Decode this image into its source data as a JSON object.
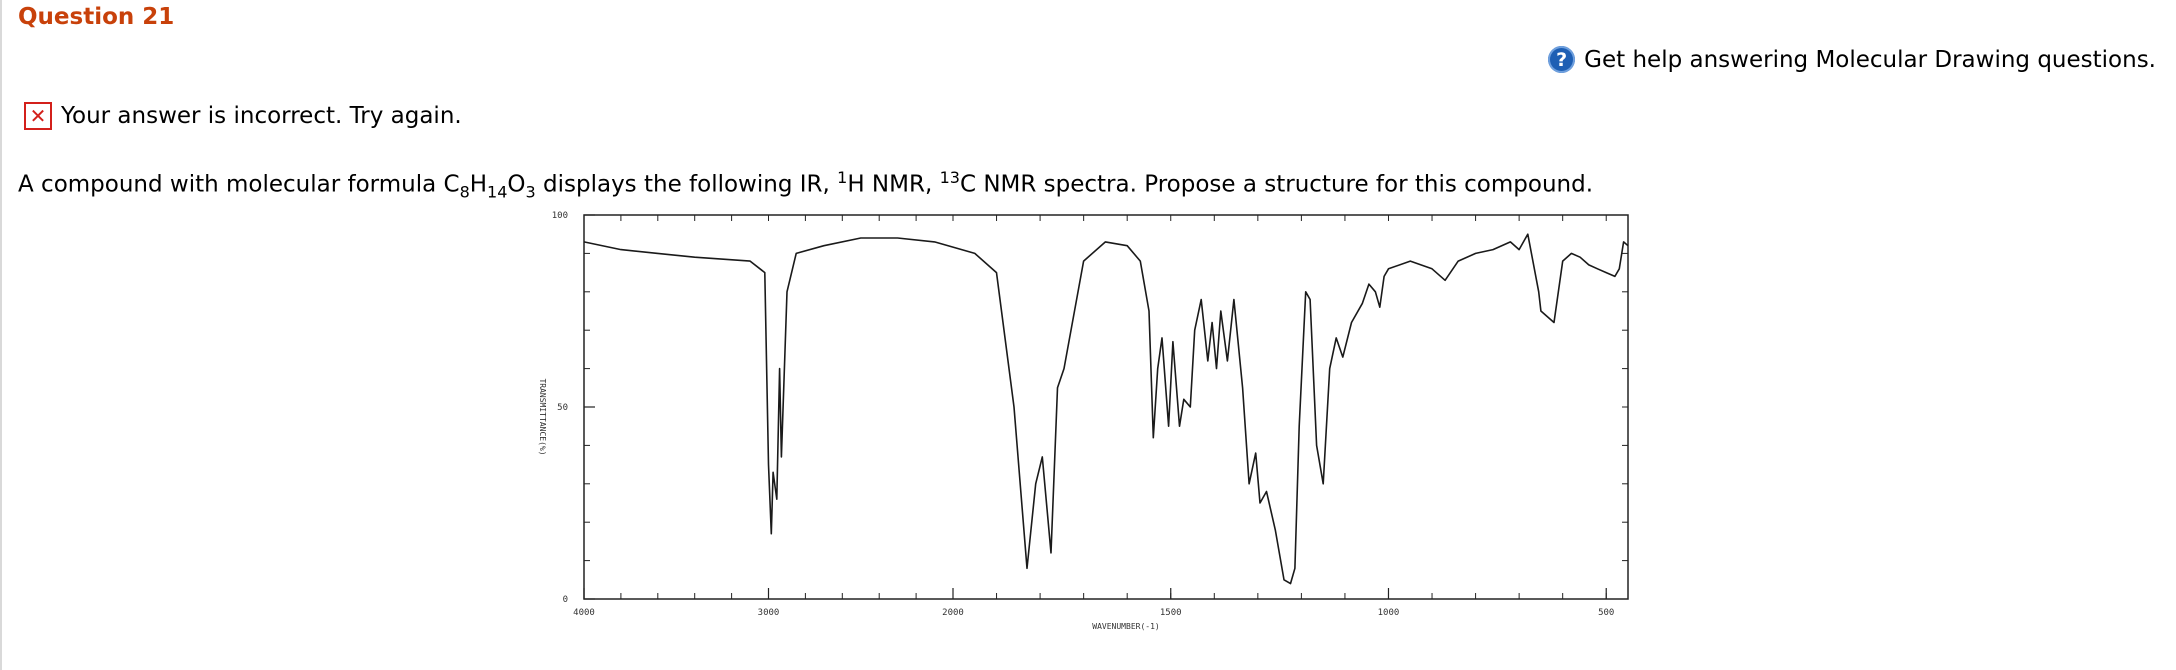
{
  "question": {
    "title": "Question 21"
  },
  "help": {
    "label": "Get help answering Molecular Drawing questions.",
    "icon": "help-circle-icon"
  },
  "feedback": {
    "text": "Your answer is incorrect.  Try again.",
    "icon": "x-mark-icon",
    "color": "#d3201b"
  },
  "prompt": {
    "part1": "A compound with molecular formula C",
    "c_count": "8",
    "h_label": "H",
    "h_count": "14",
    "o_label": "O",
    "o_count": "3",
    "part2": " displays the following IR, ",
    "h_nmr_sup": "1",
    "h_nmr_text": "H NMR, ",
    "c_nmr_sup": "13",
    "c_nmr_text": "C NMR spectra. Propose a structure for this compound."
  },
  "chart_data": {
    "type": "line",
    "xlabel": "WAVENUMBER(-1)",
    "ylabel": "TRANSMITTANCE(%)",
    "xlim": [
      4000,
      400
    ],
    "ylim": [
      0,
      100
    ],
    "x_ticks": [
      "4000",
      "3000",
      "2000",
      "1500",
      "1000",
      "500"
    ],
    "y_ticks": [
      "0",
      "50",
      "100"
    ],
    "series": [
      {
        "points": [
          [
            4000,
            93
          ],
          [
            3800,
            91
          ],
          [
            3600,
            90
          ],
          [
            3400,
            89
          ],
          [
            3100,
            88
          ],
          [
            3020,
            85
          ],
          [
            3000,
            35
          ],
          [
            2985,
            17
          ],
          [
            2975,
            33
          ],
          [
            2955,
            26
          ],
          [
            2940,
            60
          ],
          [
            2930,
            37
          ],
          [
            2900,
            80
          ],
          [
            2850,
            90
          ],
          [
            2700,
            92
          ],
          [
            2500,
            94
          ],
          [
            2300,
            94
          ],
          [
            2100,
            93
          ],
          [
            1950,
            90
          ],
          [
            1900,
            85
          ],
          [
            1860,
            50
          ],
          [
            1830,
            8
          ],
          [
            1810,
            30
          ],
          [
            1795,
            37
          ],
          [
            1775,
            12
          ],
          [
            1760,
            55
          ],
          [
            1745,
            60
          ],
          [
            1700,
            88
          ],
          [
            1650,
            93
          ],
          [
            1600,
            92
          ],
          [
            1570,
            88
          ],
          [
            1550,
            75
          ],
          [
            1540,
            42
          ],
          [
            1530,
            60
          ],
          [
            1520,
            68
          ],
          [
            1505,
            45
          ],
          [
            1495,
            67
          ],
          [
            1480,
            45
          ],
          [
            1470,
            52
          ],
          [
            1455,
            50
          ],
          [
            1445,
            70
          ],
          [
            1430,
            78
          ],
          [
            1415,
            62
          ],
          [
            1405,
            72
          ],
          [
            1395,
            60
          ],
          [
            1385,
            75
          ],
          [
            1370,
            62
          ],
          [
            1355,
            78
          ],
          [
            1335,
            55
          ],
          [
            1320,
            30
          ],
          [
            1305,
            38
          ],
          [
            1295,
            25
          ],
          [
            1280,
            28
          ],
          [
            1260,
            18
          ],
          [
            1240,
            5
          ],
          [
            1225,
            4
          ],
          [
            1215,
            8
          ],
          [
            1205,
            45
          ],
          [
            1190,
            80
          ],
          [
            1180,
            78
          ],
          [
            1165,
            40
          ],
          [
            1150,
            30
          ],
          [
            1135,
            60
          ],
          [
            1120,
            68
          ],
          [
            1105,
            63
          ],
          [
            1085,
            72
          ],
          [
            1060,
            77
          ],
          [
            1045,
            82
          ],
          [
            1030,
            80
          ],
          [
            1020,
            76
          ],
          [
            1010,
            84
          ],
          [
            1000,
            86
          ],
          [
            950,
            88
          ],
          [
            900,
            86
          ],
          [
            870,
            83
          ],
          [
            840,
            88
          ],
          [
            800,
            90
          ],
          [
            760,
            91
          ],
          [
            720,
            93
          ],
          [
            700,
            91
          ],
          [
            680,
            95
          ],
          [
            655,
            80
          ],
          [
            650,
            75
          ],
          [
            620,
            72
          ],
          [
            600,
            88
          ],
          [
            580,
            90
          ],
          [
            560,
            89
          ],
          [
            540,
            87
          ],
          [
            520,
            86
          ],
          [
            500,
            85
          ],
          [
            480,
            84
          ],
          [
            470,
            86
          ],
          [
            460,
            93
          ],
          [
            450,
            92
          ]
        ]
      }
    ]
  }
}
